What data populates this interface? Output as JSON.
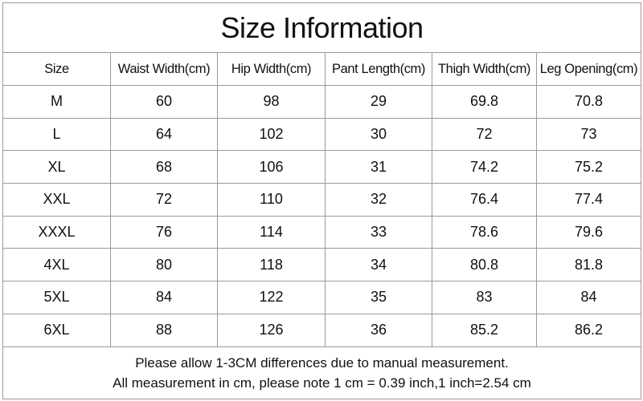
{
  "title": "Size Information",
  "table": {
    "header": [
      "Size",
      "Waist Width(cm)",
      "Hip Width(cm)",
      "Pant Length(cm)",
      "Thigh Width(cm)",
      "Leg Opening(cm)"
    ],
    "rows": [
      [
        "M",
        60,
        98,
        29,
        69.8,
        70.8
      ],
      [
        "L",
        64,
        102,
        30,
        72,
        73
      ],
      [
        "XL",
        68,
        106,
        31,
        74.2,
        75.2
      ],
      [
        "XXL",
        72,
        110,
        32,
        76.4,
        77.4
      ],
      [
        "XXXL",
        76,
        114,
        33,
        78.6,
        79.6
      ],
      [
        "4XL",
        80,
        118,
        34,
        80.8,
        81.8
      ],
      [
        "5XL",
        84,
        122,
        35,
        83,
        84
      ],
      [
        "6XL",
        88,
        126,
        36,
        85.2,
        86.2
      ]
    ]
  },
  "footer": [
    "Please allow 1-3CM differences due to manual measurement.",
    "All measurement in cm, please note 1 cm = 0.39 inch,1 inch=2.54 cm"
  ]
}
